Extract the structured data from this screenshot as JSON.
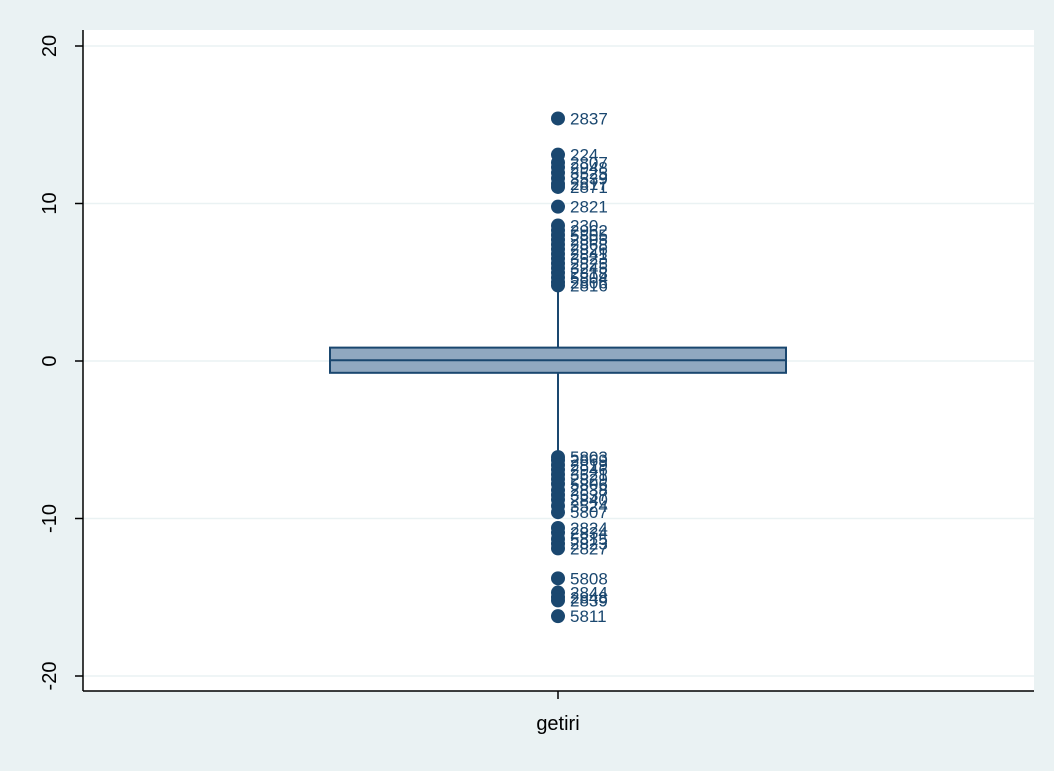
{
  "colors": {
    "background": "#eaf2f3",
    "plot_background": "#ffffff",
    "grid": "#eaf2f3",
    "box_fill": "#90a8c0",
    "box_line": "#1a476f",
    "marker": "#1a476f"
  },
  "chart_data": {
    "type": "box",
    "title": "",
    "xlabel": "",
    "ylabel": "",
    "ylim": [
      -21,
      21
    ],
    "yticks": [
      -20,
      -10,
      0,
      10,
      20
    ],
    "ytick_labels": [
      "-20",
      "-10",
      "0",
      "10",
      "20"
    ],
    "grid": true,
    "categories": [
      "getiri"
    ],
    "series": [
      {
        "category": "getiri",
        "q1": -0.75,
        "median": 0.05,
        "q3": 0.85,
        "whisker_low": -5.9,
        "whisker_high": 4.8,
        "outliers": [
          {
            "y": 15.4,
            "label": "2837"
          },
          {
            "y": 13.1,
            "label": "224"
          },
          {
            "y": 12.6,
            "label": "2807"
          },
          {
            "y": 12.3,
            "label": "2948"
          },
          {
            "y": 11.95,
            "label": "3525"
          },
          {
            "y": 11.6,
            "label": "3539"
          },
          {
            "y": 11.25,
            "label": "2817"
          },
          {
            "y": 11.05,
            "label": "2871"
          },
          {
            "y": 9.8,
            "label": "2821"
          },
          {
            "y": 8.6,
            "label": "230"
          },
          {
            "y": 8.3,
            "label": "2962"
          },
          {
            "y": 8.0,
            "label": "5805"
          },
          {
            "y": 7.7,
            "label": "2805"
          },
          {
            "y": 7.4,
            "label": "2868"
          },
          {
            "y": 7.1,
            "label": "2826"
          },
          {
            "y": 6.8,
            "label": "2841"
          },
          {
            "y": 6.5,
            "label": "3523"
          },
          {
            "y": 6.2,
            "label": "2825"
          },
          {
            "y": 5.9,
            "label": "3245"
          },
          {
            "y": 5.6,
            "label": "2818"
          },
          {
            "y": 5.3,
            "label": "5804"
          },
          {
            "y": 5.0,
            "label": "2806"
          },
          {
            "y": 4.8,
            "label": "2816"
          },
          {
            "y": -6.1,
            "label": "5803"
          },
          {
            "y": -6.3,
            "label": "2869"
          },
          {
            "y": -6.6,
            "label": "2819"
          },
          {
            "y": -6.9,
            "label": "2946"
          },
          {
            "y": -7.2,
            "label": "3521"
          },
          {
            "y": -7.5,
            "label": "2829"
          },
          {
            "y": -7.8,
            "label": "5806"
          },
          {
            "y": -8.2,
            "label": "2838"
          },
          {
            "y": -8.5,
            "label": "3537"
          },
          {
            "y": -8.8,
            "label": "2840"
          },
          {
            "y": -9.2,
            "label": "3524"
          },
          {
            "y": -9.6,
            "label": "5807"
          },
          {
            "y": -10.6,
            "label": "2824"
          },
          {
            "y": -10.9,
            "label": "2834"
          },
          {
            "y": -11.3,
            "label": "5815"
          },
          {
            "y": -11.6,
            "label": "2823"
          },
          {
            "y": -11.9,
            "label": "2827"
          },
          {
            "y": -13.8,
            "label": "5808"
          },
          {
            "y": -14.7,
            "label": "2844"
          },
          {
            "y": -15.0,
            "label": "2848"
          },
          {
            "y": -15.2,
            "label": "2839"
          },
          {
            "y": -16.2,
            "label": "5811"
          }
        ]
      }
    ]
  }
}
